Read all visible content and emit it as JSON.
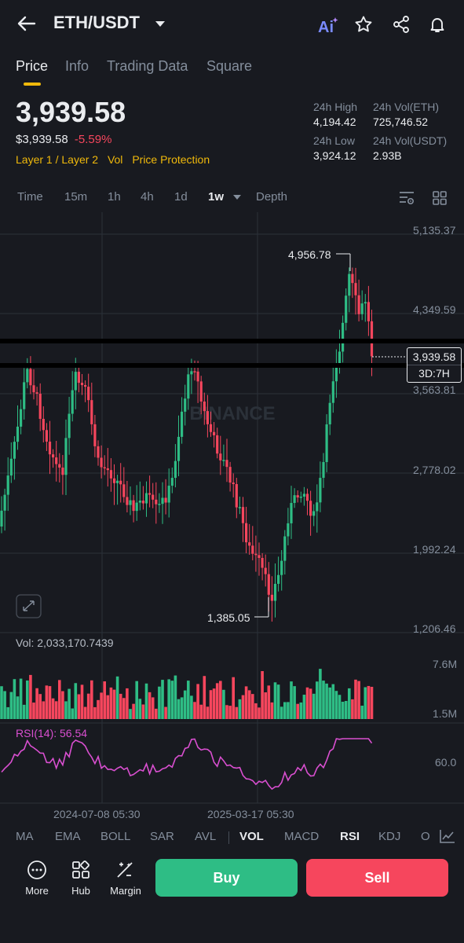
{
  "header": {
    "pair": "ETH/USDT"
  },
  "tabs": [
    {
      "label": "Price",
      "active": true
    },
    {
      "label": "Info",
      "active": false
    },
    {
      "label": "Trading Data",
      "active": false
    },
    {
      "label": "Square",
      "active": false
    }
  ],
  "ticker": {
    "last_price": "3,939.58",
    "fiat_price": "$3,939.58",
    "change_pct": "-5.59%",
    "tags": [
      "Layer 1 / Layer 2",
      "Vol",
      "Price Protection"
    ],
    "stats": {
      "high_label": "24h High",
      "high_value": "4,194.42",
      "vol_eth_label": "24h Vol(ETH)",
      "vol_eth_value": "725,746.52",
      "low_label": "24h Low",
      "low_value": "3,924.12",
      "vol_usdt_label": "24h Vol(USDT)",
      "vol_usdt_value": "2.93B"
    }
  },
  "timeframes": [
    {
      "label": "Time",
      "active": false
    },
    {
      "label": "15m",
      "active": false
    },
    {
      "label": "1h",
      "active": false
    },
    {
      "label": "4h",
      "active": false
    },
    {
      "label": "1d",
      "active": false
    },
    {
      "label": "1w",
      "active": true
    },
    {
      "label": "Depth",
      "active": false
    }
  ],
  "chart": {
    "watermark": "BINANCE",
    "y_ticks": [
      "5,135.37",
      "4,349.59",
      "3,563.81",
      "2,778.02",
      "1,992.24",
      "1,206.46"
    ],
    "high_label": "4,956.78",
    "low_label": "1,385.05",
    "current_price": "3,939.58",
    "countdown": "3D:7H"
  },
  "volume": {
    "label": "Vol: 2,033,170.7439",
    "ticks": [
      "7.6M",
      "1.5M"
    ]
  },
  "rsi": {
    "label": "RSI(14): 56.54",
    "tick": "60.0"
  },
  "x_axis": [
    "2024-07-08 05:30",
    "2025-03-17 05:30"
  ],
  "indicators": [
    {
      "label": "MA",
      "active": false
    },
    {
      "label": "EMA",
      "active": false
    },
    {
      "label": "BOLL",
      "active": false
    },
    {
      "label": "SAR",
      "active": false
    },
    {
      "label": "AVL",
      "active": false
    },
    {
      "label": "VOL",
      "active": true
    },
    {
      "label": "MACD",
      "active": false
    },
    {
      "label": "RSI",
      "active": true
    },
    {
      "label": "KDJ",
      "active": false
    },
    {
      "label": "O",
      "active": false
    }
  ],
  "bottom_nav": {
    "more": "More",
    "hub": "Hub",
    "margin": "Margin",
    "buy": "Buy",
    "sell": "Sell"
  },
  "colors": {
    "up": "#2ebd85",
    "down": "#f6465d",
    "accent": "#f0b90b",
    "rsi_line": "#d94fd0",
    "bg": "#181a20"
  }
}
